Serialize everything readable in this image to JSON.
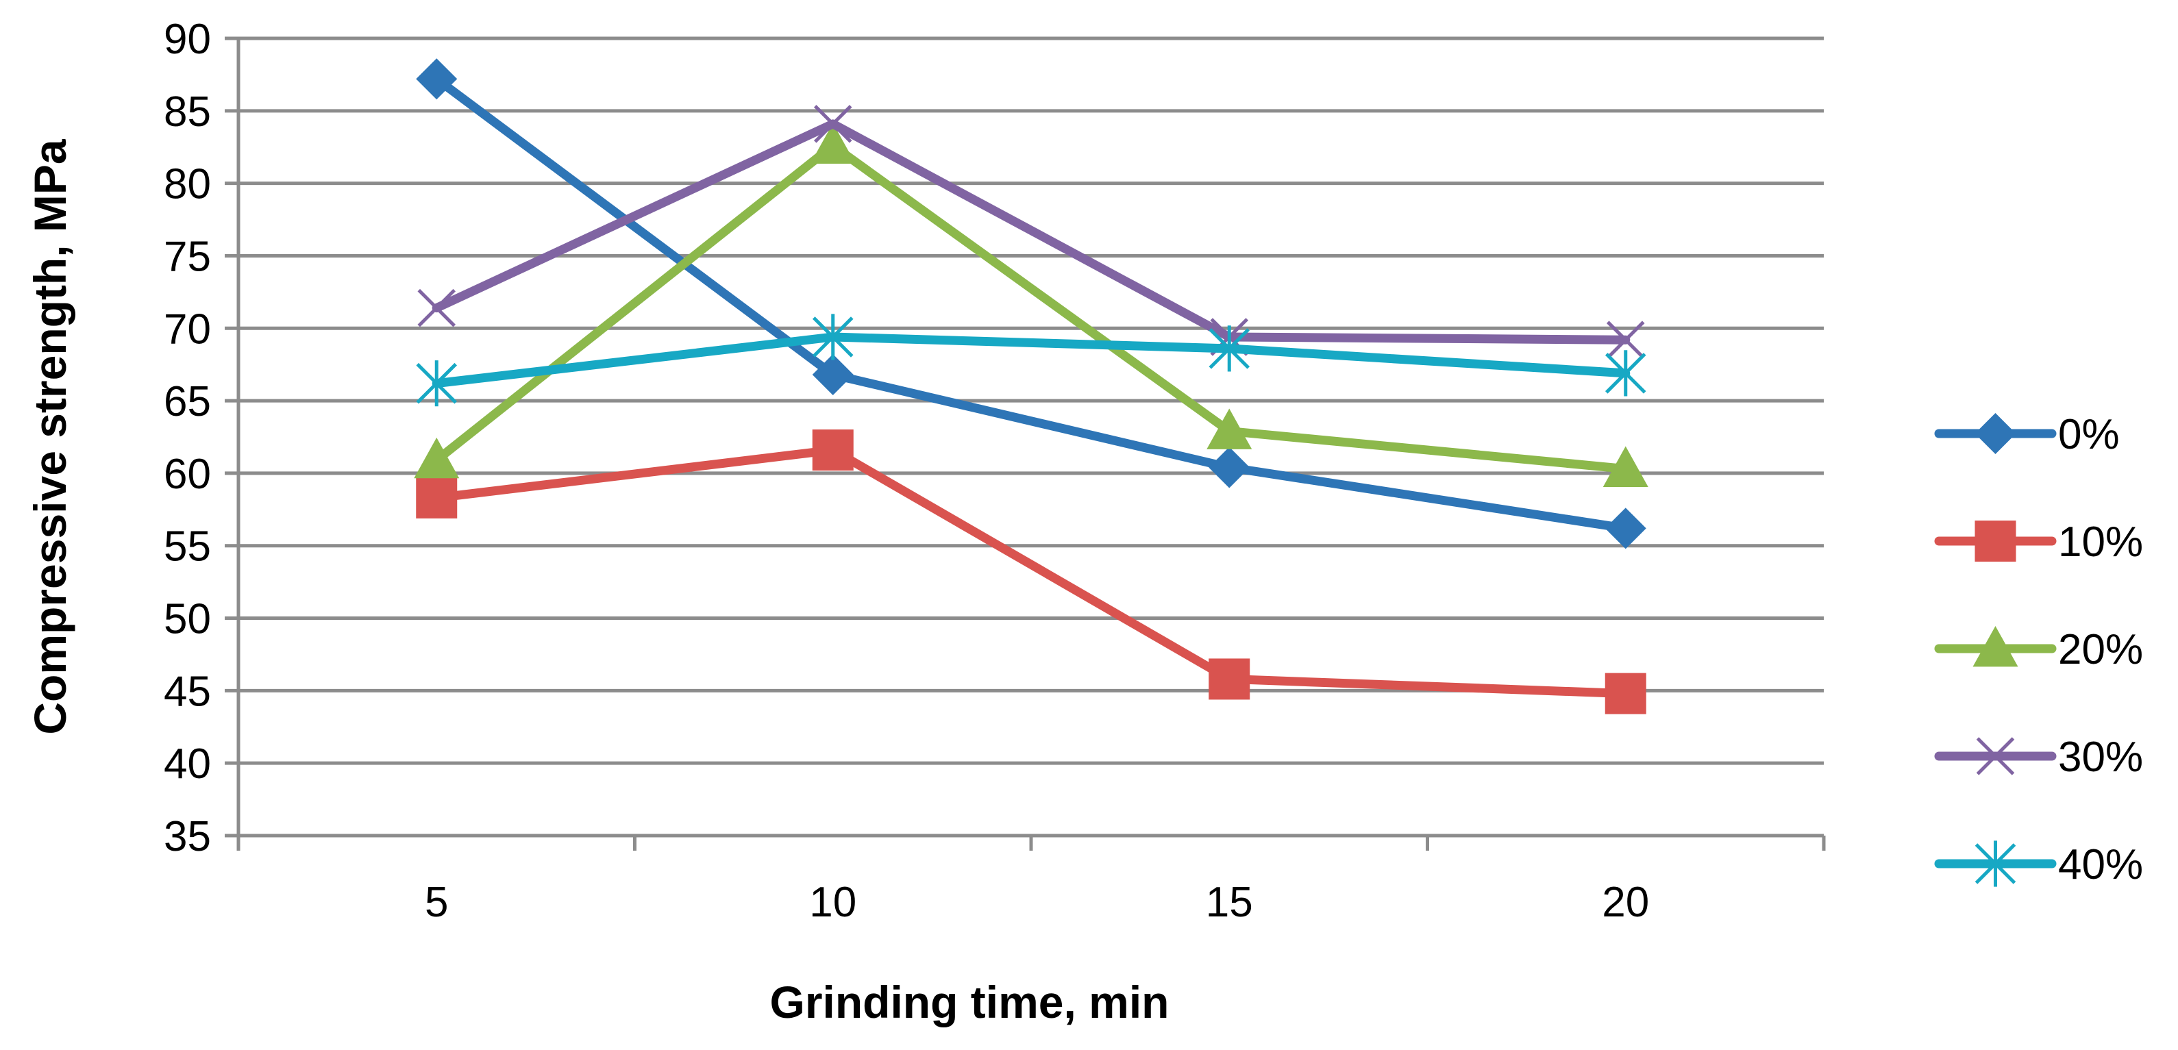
{
  "chart_data": {
    "type": "line",
    "title": "",
    "xlabel": "Grinding time, min",
    "ylabel": "Compressive strength, MPa",
    "categories": [
      "5",
      "10",
      "15",
      "20"
    ],
    "ylim": [
      35,
      90
    ],
    "yticks": [
      35,
      40,
      45,
      50,
      55,
      60,
      65,
      70,
      75,
      80,
      85,
      90
    ],
    "grid": true,
    "legend_position": "right",
    "series": [
      {
        "name": "0%",
        "color": "#2E75B6",
        "marker": "diamond",
        "values": [
          87.2,
          66.8,
          60.4,
          56.2
        ]
      },
      {
        "name": "10%",
        "color": "#D9534F",
        "marker": "square",
        "values": [
          58.3,
          61.6,
          45.8,
          44.8
        ]
      },
      {
        "name": "20%",
        "color": "#8CB84B",
        "marker": "triangle",
        "values": [
          60.9,
          82.6,
          62.9,
          60.3
        ]
      },
      {
        "name": "30%",
        "color": "#8064A2",
        "marker": "x",
        "values": [
          71.4,
          84.1,
          69.4,
          69.2
        ]
      },
      {
        "name": "40%",
        "color": "#17A8C4",
        "marker": "star",
        "values": [
          66.2,
          69.4,
          68.6,
          66.9
        ]
      }
    ]
  }
}
